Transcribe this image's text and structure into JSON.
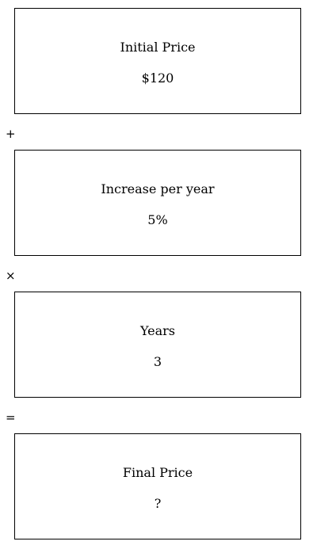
{
  "steps": [
    {
      "label": "Initial Price",
      "value": "$120"
    },
    {
      "label": "Increase per year",
      "value": "5%"
    },
    {
      "label": "Years",
      "value": "3"
    },
    {
      "label": "Final Price",
      "value": "?"
    }
  ],
  "operators": [
    "+",
    "×",
    "="
  ]
}
